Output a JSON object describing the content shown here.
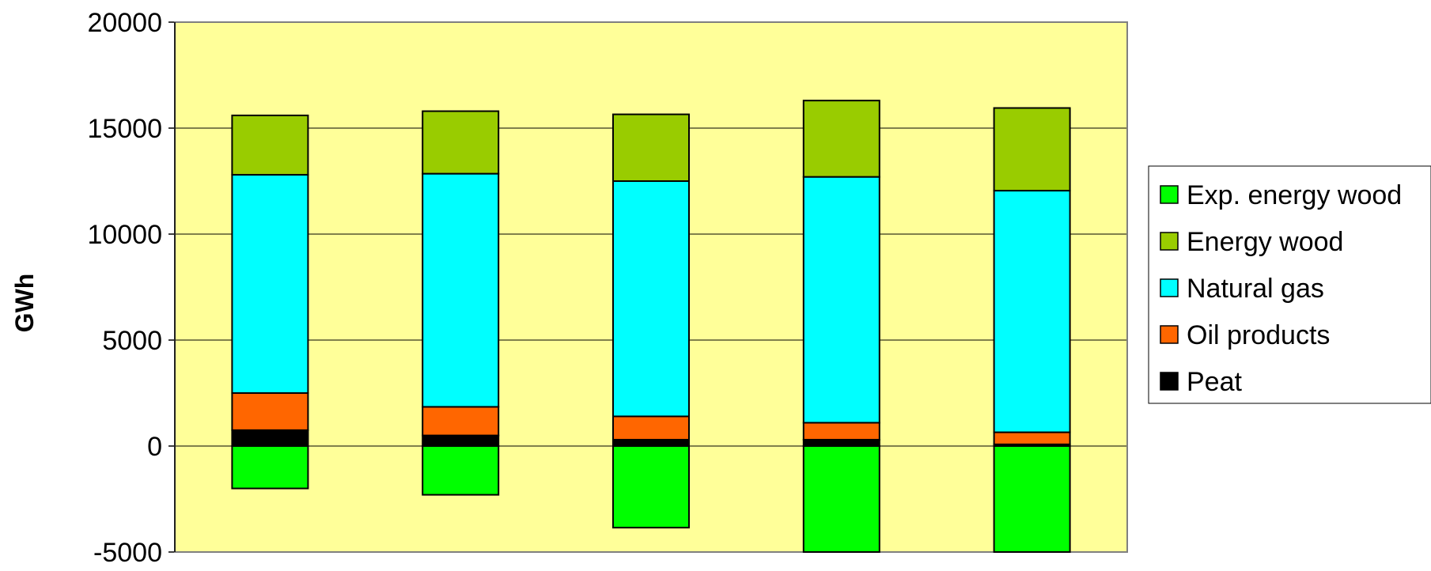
{
  "chart_data": {
    "type": "bar",
    "stacked": true,
    "ylabel": "GWh",
    "xlabel": "",
    "ylim": [
      -5000,
      20000
    ],
    "yticks": [
      -5000,
      0,
      5000,
      10000,
      15000,
      20000
    ],
    "ytick_labels": [
      "-5000",
      "0",
      "5000",
      "10000",
      "15000",
      "20000"
    ],
    "grid": true,
    "legend_position": "right",
    "categories": [
      "",
      "",
      "",
      "",
      ""
    ],
    "series": [
      {
        "name": "Peat",
        "color": "#000000",
        "values": [
          750,
          500,
          300,
          300,
          80
        ]
      },
      {
        "name": "Oil products",
        "color": "#ff6600",
        "values": [
          1750,
          1350,
          1100,
          800,
          570
        ]
      },
      {
        "name": "Natural gas",
        "color": "#00ffff",
        "values": [
          10300,
          11000,
          11100,
          11600,
          11400
        ]
      },
      {
        "name": "Energy wood",
        "color": "#99cc00",
        "values": [
          2800,
          2950,
          3150,
          3600,
          3900
        ]
      },
      {
        "name": "Exp. energy wood",
        "color": "#00ff00",
        "values": [
          -2000,
          -2300,
          -3850,
          -5000,
          -5000
        ]
      }
    ],
    "legend_order": [
      "Exp. energy wood",
      "Energy wood",
      "Natural gas",
      "Oil products",
      "Peat"
    ],
    "plot_background": "#ffff99"
  }
}
